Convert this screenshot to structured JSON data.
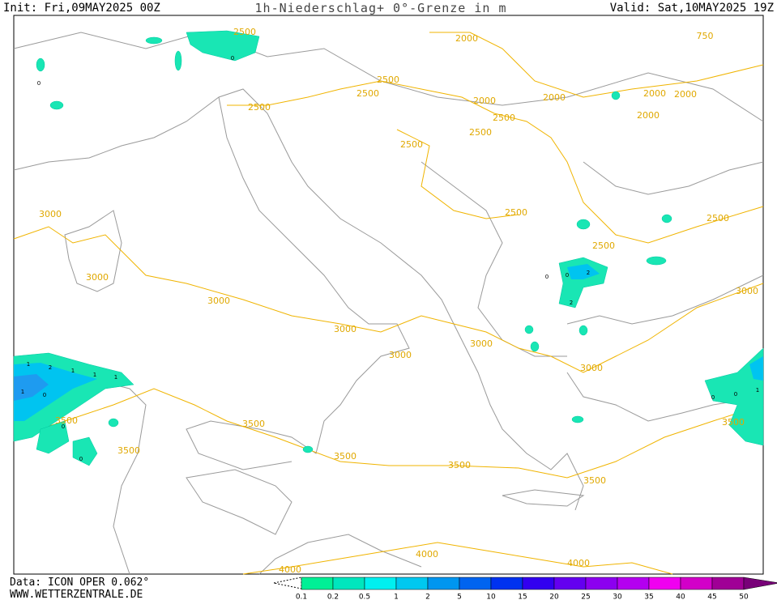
{
  "header": {
    "init": "Init: Fri,09MAY2025 00Z",
    "title": "1h-Niederschlag+ 0°-Grenze in m",
    "valid": "Valid: Sat,10MAY2025 19Z"
  },
  "contour_labels": [
    "2500",
    "2000",
    "750",
    "2500",
    "2500",
    "2500",
    "2000",
    "2000",
    "2000",
    "2000",
    "2000",
    "2500",
    "2500",
    "2500",
    "3000",
    "2500",
    "2500",
    "2500",
    "3000",
    "3000",
    "3000",
    "3000",
    "3000",
    "3000",
    "3000",
    "3500",
    "3500",
    "3500",
    "3500",
    "3500",
    "3500",
    "3500",
    "4000",
    "4000",
    "4000"
  ],
  "precip_labels": [
    "0",
    "0",
    "1",
    "2",
    "1",
    "1",
    "1",
    "0",
    "1",
    "0",
    "0",
    "0",
    "2",
    "2",
    "0",
    "0",
    "0",
    "1"
  ],
  "footer": {
    "data": "Data: ICON OPER 0.062°",
    "site": "WWW.WETTERZENTRALE.DE"
  },
  "legend": {
    "labels": [
      "0.1",
      "0.2",
      "0.5",
      "1",
      "2",
      "5",
      "10",
      "15",
      "20",
      "25",
      "30",
      "35",
      "40",
      "45",
      "50"
    ],
    "colors": [
      "#00f096",
      "#00e6be",
      "#00f0f0",
      "#00c8f0",
      "#0096f0",
      "#0064f0",
      "#0032f0",
      "#3200f0",
      "#6400f0",
      "#8c00f0",
      "#b400f0",
      "#f000f0",
      "#d200c8",
      "#a00096",
      "#780078"
    ]
  }
}
